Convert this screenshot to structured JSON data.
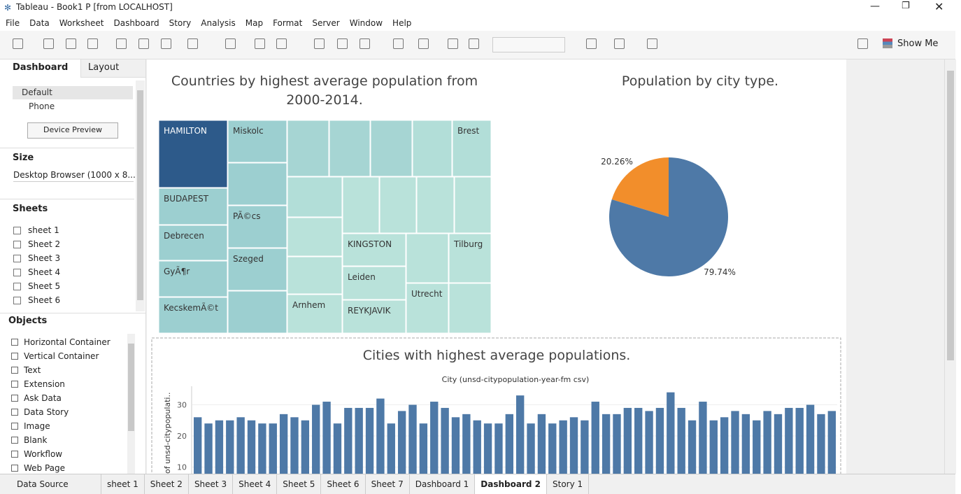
{
  "window": {
    "title": "Tableau - Book1 P [from LOCALHOST]"
  },
  "menu": [
    "File",
    "Data",
    "Worksheet",
    "Dashboard",
    "Story",
    "Analysis",
    "Map",
    "Format",
    "Server",
    "Window",
    "Help"
  ],
  "toolbar": {
    "show_me": "Show Me"
  },
  "side_tabs": [
    "Dashboard",
    "Layout"
  ],
  "device": {
    "items": [
      "Default",
      "Phone"
    ],
    "button": "Device Preview"
  },
  "size": {
    "heading": "Size",
    "value": "Desktop Browser (1000 x 8..."
  },
  "sheets": {
    "heading": "Sheets",
    "items": [
      "sheet 1",
      "Sheet 2",
      "Sheet 3",
      "Sheet 4",
      "Sheet 5",
      "Sheet 6"
    ]
  },
  "objects": {
    "heading": "Objects",
    "items": [
      "Horizontal Container",
      "Vertical Container",
      "Text",
      "Extension",
      "Ask Data",
      "Data Story",
      "Image",
      "Blank",
      "Workflow",
      "Web Page"
    ]
  },
  "bottom_tabs": [
    "Data Source",
    "sheet 1",
    "Sheet 2",
    "Sheet 3",
    "Sheet 4",
    "Sheet 5",
    "Sheet 6",
    "Sheet 7",
    "Dashboard 1",
    "Dashboard 2",
    "Story 1"
  ],
  "treemap": {
    "title": "Countries by highest average population from 2000-2014.",
    "labels": [
      "HAMILTON",
      "Miskolc",
      "Brest",
      "BUDAPEST",
      "PÃ©cs",
      "Debrecen",
      "Szeged",
      "GyÃ¶r",
      "KecskemÃ©t",
      "KINGSTON",
      "Tilburg",
      "Leiden",
      "Arnhem",
      "Utrecht",
      "REYKJAVIK"
    ]
  },
  "pie_chart": {
    "type": "pie",
    "title": "Population by city type.",
    "values": [
      20.26,
      79.74
    ],
    "value_labels": [
      "20.26%",
      "79.74%"
    ],
    "colors": [
      "#f28e2b",
      "#4e79a7"
    ]
  },
  "bar_chart": {
    "type": "bar",
    "title": "Cities with highest average populations.",
    "x_label": "City (unsd-citypopulation-year-fm csv)",
    "y_label": "of unsd-citypopulati..",
    "color": "#4e79a7",
    "ylim": [
      0,
      36
    ],
    "yticks": [
      10,
      20,
      30
    ],
    "grid": true,
    "values": [
      26,
      24,
      25,
      25,
      26,
      25,
      24,
      24,
      27,
      26,
      25,
      30,
      31,
      24,
      29,
      29,
      29,
      32,
      24,
      28,
      30,
      24,
      31,
      29,
      26,
      27,
      25,
      24,
      24,
      27,
      33,
      24,
      27,
      24,
      25,
      26,
      25,
      31,
      27,
      27,
      29,
      29,
      28,
      29,
      34,
      29,
      25,
      31,
      25,
      26,
      28,
      27,
      25,
      28,
      27,
      29,
      29,
      30,
      27,
      28
    ]
  }
}
